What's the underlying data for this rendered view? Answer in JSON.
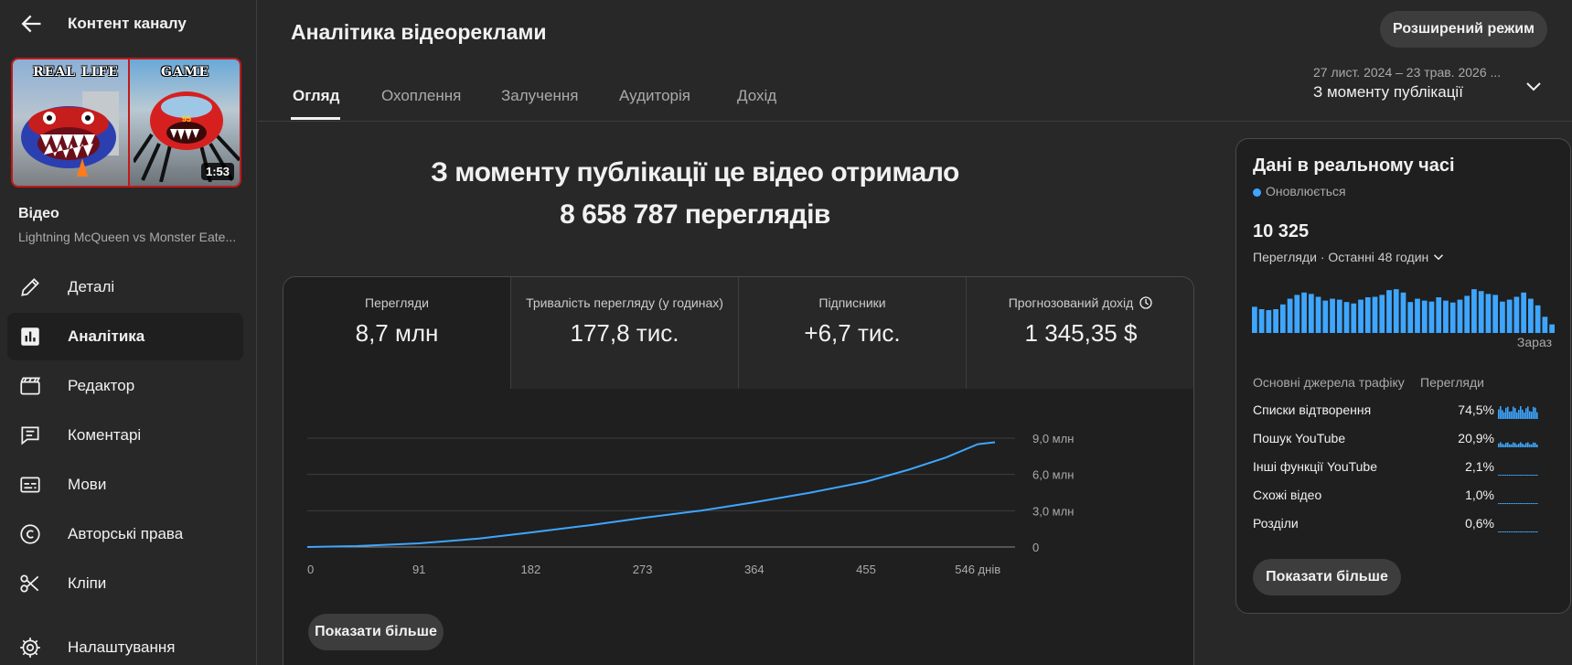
{
  "sidebar": {
    "title": "Контент каналу",
    "thumb_caption_left": "REAL LIFE",
    "thumb_caption_right": "GAME",
    "thumb_duration": "1:53",
    "video_label": "Відео",
    "video_name": "Lightning McQueen vs Monster Eate...",
    "nav": [
      {
        "label": "Деталі",
        "icon": "pencil-icon"
      },
      {
        "label": "Аналітика",
        "icon": "analytics-icon",
        "active": true
      },
      {
        "label": "Редактор",
        "icon": "clapperboard-icon"
      },
      {
        "label": "Коментарі",
        "icon": "comment-icon"
      },
      {
        "label": "Мови",
        "icon": "subtitles-icon"
      },
      {
        "label": "Авторські права",
        "icon": "copyright-icon"
      },
      {
        "label": "Кліпи",
        "icon": "scissors-icon"
      },
      {
        "label": "Налаштування",
        "icon": "gear-icon"
      }
    ]
  },
  "header": {
    "title": "Аналітика відеореклами",
    "advanced_button": "Розширений режим",
    "tabs": [
      "Огляд",
      "Охоплення",
      "Залучення",
      "Аудиторія",
      "Дохід"
    ],
    "active_tab": 0,
    "date_range": "27 лист. 2024 – 23 трав. 2026 ...",
    "date_period": "З моменту публікації"
  },
  "headline": {
    "line1": "З моменту публікації це відео отримало",
    "line2": "8 658 787 переглядів"
  },
  "kpis": [
    {
      "label": "Перегляди",
      "value": "8,7 млн"
    },
    {
      "label": "Тривалість перегляду (у годинах)",
      "value": "177,8 тис."
    },
    {
      "label": "Підписники",
      "value": "+6,7 тис."
    },
    {
      "label": "Прогнозований дохід",
      "value": "1 345,35 $",
      "icon": "clock-icon"
    }
  ],
  "chart_data": {
    "type": "line",
    "title": "",
    "xlabel": "",
    "ylabel": "",
    "x_ticks": [
      "0",
      "91",
      "182",
      "273",
      "364",
      "455",
      "546 днів"
    ],
    "y_ticks": [
      "0",
      "3,0 млн",
      "6,0 млн",
      "9,0 млн"
    ],
    "ylim": [
      0,
      9000000
    ],
    "xlim": [
      0,
      560
    ],
    "series": [
      {
        "color": "#3ea6ff",
        "x": [
          0,
          40,
          91,
          140,
          182,
          230,
          273,
          320,
          364,
          410,
          455,
          490,
          520,
          546,
          560
        ],
        "y": [
          0,
          80000,
          300000,
          700000,
          1200000,
          1800000,
          2400000,
          3000000,
          3700000,
          4500000,
          5400000,
          6400000,
          7400000,
          8500000,
          8658787
        ]
      }
    ]
  },
  "main_show_more": "Показати більше",
  "realtime": {
    "title": "Дані в реальному часі",
    "status": "Оновлюється",
    "count": "10 325",
    "subtitle": "Перегляди · Останні 48 годин",
    "now_label": "Зараз",
    "bars": [
      0.55,
      0.5,
      0.48,
      0.5,
      0.6,
      0.72,
      0.8,
      0.85,
      0.82,
      0.76,
      0.68,
      0.72,
      0.7,
      0.65,
      0.62,
      0.7,
      0.75,
      0.76,
      0.8,
      0.9,
      0.92,
      0.85,
      0.65,
      0.72,
      0.68,
      0.66,
      0.75,
      0.68,
      0.64,
      0.7,
      0.78,
      0.92,
      0.88,
      0.82,
      0.8,
      0.66,
      0.7,
      0.76,
      0.85,
      0.72,
      0.58,
      0.34,
      0.18
    ],
    "table_header_source": "Основні джерела трафіку",
    "table_header_views": "Перегляди",
    "sources": [
      {
        "name": "Списки відтворення",
        "pct": "74,5%",
        "level": 1.0
      },
      {
        "name": "Пошук YouTube",
        "pct": "20,9%",
        "level": 0.4
      },
      {
        "name": "Інші функції YouTube",
        "pct": "2,1%",
        "level": 0.06
      },
      {
        "name": "Схожі відео",
        "pct": "1,0%",
        "level": 0.04
      },
      {
        "name": "Розділи",
        "pct": "0,6%",
        "level": 0.03
      }
    ],
    "show_more": "Показати більше"
  }
}
